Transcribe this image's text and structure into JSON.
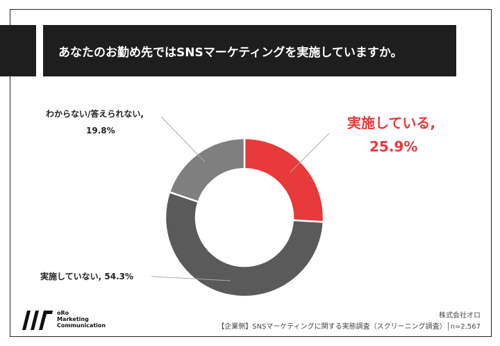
{
  "title": "あなたのお勤め先ではSNSマーケティングを実施していますか。",
  "chart_data": {
    "type": "pie",
    "donut": true,
    "slices": [
      {
        "name": "実施している",
        "value": 25.9,
        "label": "実施している,",
        "value_label": "25.9%",
        "color": "#e8393b"
      },
      {
        "name": "実施していない",
        "value": 54.3,
        "label": "実施していない, 54.3%",
        "color": "#5a5a5a"
      },
      {
        "name": "わからない/答えられない",
        "value": 19.8,
        "label": "わからない/答えられない,",
        "value_label": "19.8%",
        "color": "#7f7f7f"
      }
    ]
  },
  "footer": {
    "logo_line1": "oRo",
    "logo_line2": "Marketing",
    "logo_line3": "Communication",
    "company": "株式会社オロ",
    "source": "【企業側】SNSマーケティングに関する実態調査（スクリーニング調査）│n=2,567"
  }
}
